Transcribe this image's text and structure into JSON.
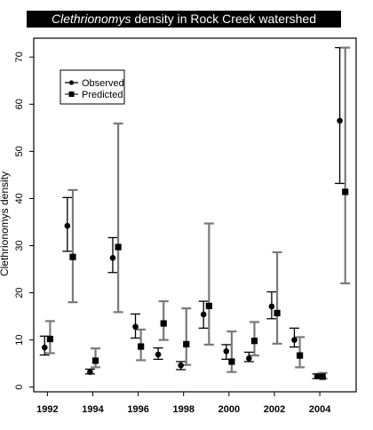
{
  "chart_data": {
    "type": "scatter",
    "title_italic": "Clethrionomys",
    "title_rest": " density in Rock Creek watershed",
    "xlabel": "",
    "ylabel": "Clethrionomys density",
    "xlim": [
      1991.4,
      2005.6
    ],
    "ylim": [
      -1,
      74
    ],
    "xticks": [
      1992,
      1994,
      1996,
      1998,
      2000,
      2002,
      2004
    ],
    "yticks": [
      0,
      10,
      20,
      30,
      40,
      50,
      60,
      70
    ],
    "legend": {
      "position": "top-left",
      "entries": [
        "Observed",
        "Predicted"
      ]
    },
    "series": [
      {
        "name": "Observed",
        "color": "#000000",
        "err_color": "#000000",
        "marker": "circle",
        "x_offset": -0.12,
        "points": [
          {
            "x": 1992,
            "y": 8.4,
            "lo": 6.8,
            "hi": 10.8
          },
          {
            "x": 1993,
            "y": 34.2,
            "lo": 28.8,
            "hi": 40.2
          },
          {
            "x": 1994,
            "y": 3.2,
            "lo": 2.8,
            "hi": 3.8
          },
          {
            "x": 1995,
            "y": 27.4,
            "lo": 24.3,
            "hi": 31.7
          },
          {
            "x": 1996,
            "y": 12.8,
            "lo": 10.4,
            "hi": 15.5
          },
          {
            "x": 1997,
            "y": 6.9,
            "lo": 5.9,
            "hi": 8.3
          },
          {
            "x": 1998,
            "y": 4.6,
            "lo": 3.7,
            "hi": 5.4
          },
          {
            "x": 1999,
            "y": 15.4,
            "lo": 12.5,
            "hi": 18.2
          },
          {
            "x": 2000,
            "y": 7.6,
            "lo": 5.9,
            "hi": 9.0
          },
          {
            "x": 2001,
            "y": 6.1,
            "lo": 5.4,
            "hi": 7.4
          },
          {
            "x": 2002,
            "y": 17.1,
            "lo": 14.5,
            "hi": 20.2
          },
          {
            "x": 2003,
            "y": 10.0,
            "lo": 8.5,
            "hi": 12.5
          },
          {
            "x": 2004,
            "y": 2.3,
            "lo": 1.8,
            "hi": 2.8
          },
          {
            "x": 2005,
            "y": 56.5,
            "lo": 43.2,
            "hi": 72.0
          }
        ]
      },
      {
        "name": "Predicted",
        "color": "#000000",
        "err_color": "#7a7a7a",
        "marker": "square",
        "x_offset": 0.12,
        "points": [
          {
            "x": 1992,
            "y": 10.2,
            "lo": 7.2,
            "hi": 14.0
          },
          {
            "x": 1993,
            "y": 27.6,
            "lo": 18.0,
            "hi": 41.8
          },
          {
            "x": 1994,
            "y": 5.6,
            "lo": 4.2,
            "hi": 8.2
          },
          {
            "x": 1995,
            "y": 29.7,
            "lo": 15.9,
            "hi": 55.9
          },
          {
            "x": 1996,
            "y": 8.6,
            "lo": 5.7,
            "hi": 12.2
          },
          {
            "x": 1997,
            "y": 13.5,
            "lo": 10.0,
            "hi": 18.2
          },
          {
            "x": 1998,
            "y": 9.1,
            "lo": 4.7,
            "hi": 16.7
          },
          {
            "x": 1999,
            "y": 17.2,
            "lo": 9.0,
            "hi": 34.7
          },
          {
            "x": 2000,
            "y": 5.4,
            "lo": 3.2,
            "hi": 11.8
          },
          {
            "x": 2001,
            "y": 9.8,
            "lo": 6.7,
            "hi": 13.8
          },
          {
            "x": 2002,
            "y": 15.7,
            "lo": 9.2,
            "hi": 28.6
          },
          {
            "x": 2003,
            "y": 6.7,
            "lo": 4.2,
            "hi": 10.6
          },
          {
            "x": 2004,
            "y": 2.2,
            "lo": 1.8,
            "hi": 3.0
          },
          {
            "x": 2005,
            "y": 41.4,
            "lo": 22.0,
            "hi": 72.0
          }
        ]
      }
    ]
  }
}
